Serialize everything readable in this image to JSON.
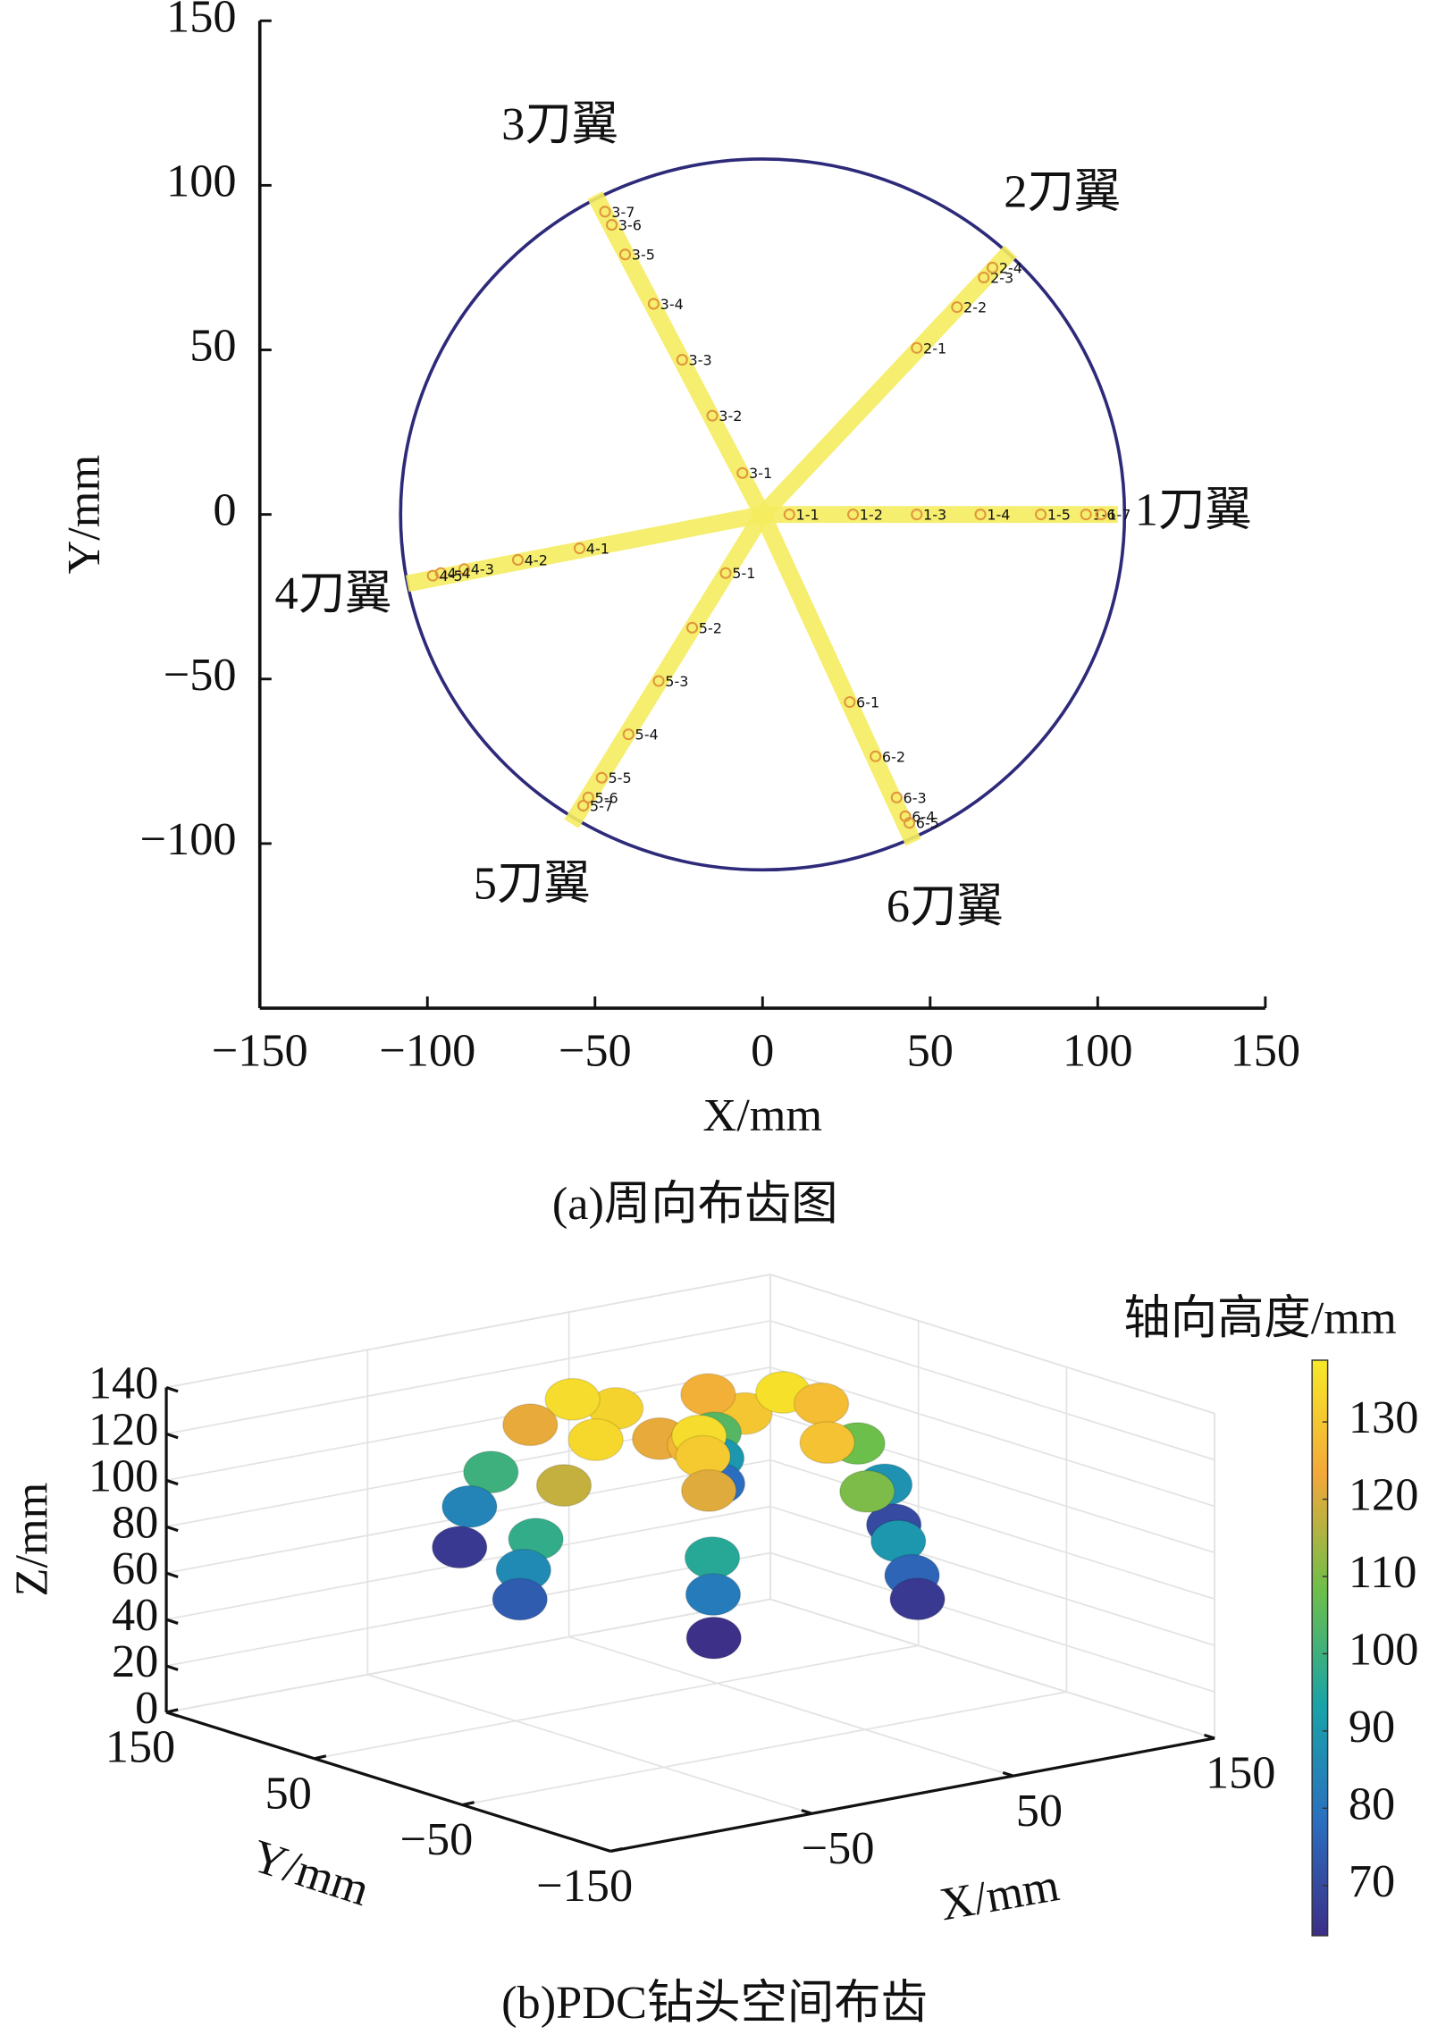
{
  "chart_data": [
    {
      "type": "scatter",
      "caption": "(a)周向布齿图",
      "xlabel": "X/mm",
      "ylabel": "Y/mm",
      "xlim": [
        -150,
        150
      ],
      "ylim": [
        -150,
        150
      ],
      "xticks": [
        {
          "value": -150,
          "label": "−150"
        },
        {
          "value": -100,
          "label": "−100"
        },
        {
          "value": -50,
          "label": "−50"
        },
        0,
        50,
        100,
        150
      ],
      "yticks": [
        {
          "value": -100,
          "label": "−100"
        },
        {
          "value": -50,
          "label": "−50"
        },
        0,
        50,
        100,
        150
      ],
      "boundary_radius": 108,
      "boundary_color": "#2e2a7a",
      "blade_color": "#f5ec5f",
      "marker_color": "#e0963a",
      "series": [
        {
          "name": "1刀翼",
          "end": [
            106,
            0
          ],
          "labels": [
            "1-1",
            "1-2",
            "1-3",
            "1-4",
            "1-5",
            "1-6",
            "1-7"
          ],
          "x": [
            8,
            27,
            46,
            65,
            83,
            96.5,
            101
          ],
          "y": [
            0,
            0,
            0,
            0,
            0,
            0,
            0
          ]
        },
        {
          "name": "2刀翼",
          "end": [
            74,
            80
          ],
          "labels": [
            "2-1",
            "2-2",
            "2-3",
            "2-4"
          ],
          "x": [
            46,
            58,
            66,
            68.6
          ],
          "y": [
            50.6,
            63,
            72,
            75
          ]
        },
        {
          "name": "3刀翼",
          "end": [
            -50,
            97
          ],
          "labels": [
            "3-1",
            "3-2",
            "3-3",
            "3-4",
            "3-5",
            "3-6",
            "3-7"
          ],
          "x": [
            -6,
            -15,
            -24,
            -32.5,
            -41,
            -45,
            -47
          ],
          "y": [
            12.6,
            30,
            47,
            64,
            79,
            88,
            92
          ]
        },
        {
          "name": "4刀翼",
          "end": [
            -106,
            -21
          ],
          "labels": [
            "4-1",
            "4-2",
            "4-3",
            "4-4",
            "4-5"
          ],
          "x": [
            -54.6,
            -73,
            -89,
            -96,
            -98.4
          ],
          "y": [
            -10.3,
            -13.8,
            -16.6,
            -17.8,
            -18.6
          ]
        },
        {
          "name": "5刀翼",
          "end": [
            -57,
            -94
          ],
          "labels": [
            "5-1",
            "5-2",
            "5-3",
            "5-4",
            "5-5",
            "5-6",
            "5-7"
          ],
          "x": [
            -11,
            -21,
            -31,
            -40,
            -48,
            -52,
            -53.5
          ],
          "y": [
            -17.8,
            -34.4,
            -50.6,
            -66.8,
            -80,
            -86,
            -88.5
          ]
        },
        {
          "name": "6刀翼",
          "end": [
            45,
            -99.6
          ],
          "labels": [
            "6-1",
            "6-2",
            "6-3",
            "6-4",
            "6-5"
          ],
          "x": [
            26,
            33.7,
            40,
            42.6,
            43.8
          ],
          "y": [
            -57,
            -73.5,
            -86,
            -91.7,
            -93.7
          ]
        }
      ]
    },
    {
      "type": "scatter3d",
      "caption": "(b)PDC钻头空间布齿",
      "xlabel": "X/mm",
      "ylabel": "Y/mm",
      "zlabel": "Z/mm",
      "colorbar_label": "轴向高度/mm",
      "xlim": [
        -150,
        150
      ],
      "ylim": [
        -150,
        150
      ],
      "zlim": [
        0,
        140
      ],
      "xticks": [
        {
          "value": -50,
          "label": "−50"
        },
        50,
        150
      ],
      "yticks": [
        150,
        50,
        {
          "value": -50,
          "label": "−50"
        },
        {
          "value": -150,
          "label": "−150"
        }
      ],
      "zticks": [
        0,
        20,
        40,
        60,
        80,
        100,
        120,
        140
      ],
      "clim": [
        63.5,
        138
      ],
      "cticks": [
        70,
        80,
        90,
        100,
        110,
        120,
        130
      ],
      "colormap": [
        "#3d2e87",
        "#2b6fc0",
        "#18a3a8",
        "#6dbf4a",
        "#f2a83a",
        "#f7e928"
      ],
      "grid": true,
      "x": [
        8,
        27,
        46,
        65,
        83,
        96.5,
        101,
        46,
        58,
        66,
        68.6,
        -6,
        -15,
        -24,
        -32.5,
        -41,
        -45,
        -47,
        -54.6,
        -73,
        -89,
        -96,
        -98.4,
        -11,
        -21,
        -31,
        -40,
        -48,
        -52,
        -53.5,
        26,
        33.7,
        40,
        42.6,
        43.8
      ],
      "y": [
        0,
        0,
        0,
        0,
        0,
        0,
        0,
        50.6,
        63,
        72,
        75,
        12.6,
        30,
        47,
        64,
        79,
        88,
        92,
        -10.3,
        -13.8,
        -16.6,
        -17.8,
        -18.6,
        -17.8,
        -34.4,
        -50.6,
        -66.8,
        -80,
        -86,
        -88.5,
        -57,
        -73.5,
        -86,
        -91.7,
        -93.7
      ],
      "z": [
        118,
        130,
        136,
        128,
        108,
        88,
        70,
        125,
        104,
        90,
        78,
        122,
        133,
        135,
        122,
        100,
        84,
        66,
        134,
        118,
        98,
        86,
        74,
        126,
        135,
        131,
        121,
        96,
        82,
        64,
        129,
        110,
        90,
        76,
        66
      ]
    }
  ]
}
